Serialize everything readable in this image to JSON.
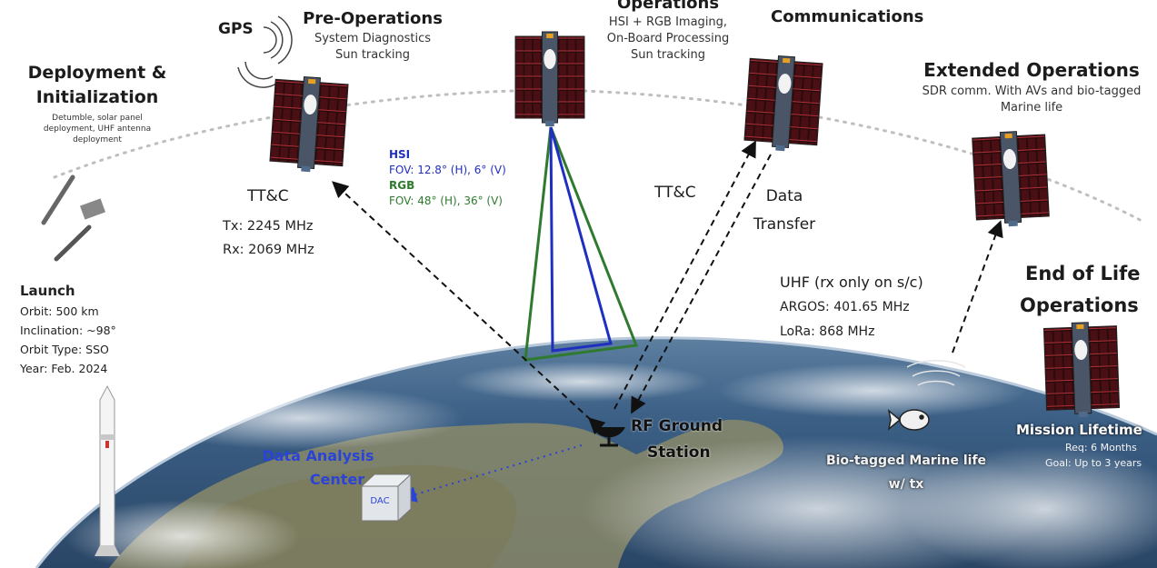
{
  "deployment": {
    "title_line1": "Deployment &",
    "title_line2": "Initialization",
    "desc_line1": "Detumble, solar panel",
    "desc_line2": "deployment, UHF antenna",
    "desc_line3": "deployment"
  },
  "launch": {
    "title": "Launch",
    "orbit": "Orbit: 500 km",
    "inclination": "Inclination: ~98°",
    "orbit_type": "Orbit Type: SSO",
    "year": "Year: Feb. 2024"
  },
  "gps_label": "GPS",
  "pre_operations": {
    "title": "Pre-Operations",
    "line1": "System Diagnostics",
    "line2": "Sun tracking"
  },
  "operations": {
    "title": "Operations",
    "line1": "HSI + RGB Imaging,",
    "line2": "On-Board Processing",
    "line3": "Sun tracking"
  },
  "communications": {
    "title": "Communications"
  },
  "extended_operations": {
    "title": "Extended Operations",
    "line1": "SDR comm. With AVs and bio-tagged",
    "line2": "Marine life"
  },
  "ttc_left": {
    "title": "TT&C",
    "tx": "Tx: 2245 MHz",
    "rx": "Rx: 2069 MHz"
  },
  "hsi": {
    "label": "HSI",
    "fov": "FOV: 12.8° (H), 6° (V)"
  },
  "rgb": {
    "label": "RGB",
    "fov": "FOV: 48° (H), 36° (V)"
  },
  "ttc_right": {
    "title": "TT&C"
  },
  "data_transfer": {
    "line1": "Data",
    "line2": "Transfer"
  },
  "uhf": {
    "title": "UHF (rx only on s/c)",
    "argos": "ARGOS: 401.65 MHz",
    "lora": "LoRa: 868 MHz"
  },
  "end_of_life": {
    "line1": "End of Life",
    "line2": "Operations"
  },
  "mission_lifetime": {
    "title": "Mission Lifetime",
    "req": "Req: 6 Months",
    "goal": "Goal: Up to 3 years"
  },
  "ground_station": {
    "line1": "RF Ground",
    "line2": "Station"
  },
  "data_analysis": {
    "line1": "Data Analysis",
    "line2": "Center",
    "box_label": "DAC"
  },
  "marine": {
    "line1": "Bio-tagged Marine life",
    "line2": "w/ tx"
  },
  "colors": {
    "hsi": "#1f2fbf",
    "rgb": "#2f7a2f",
    "dac_arrow": "#2a44d6",
    "ocean": "#2f4f73"
  }
}
